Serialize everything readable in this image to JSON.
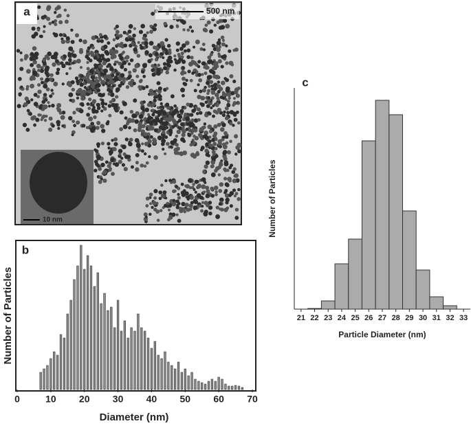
{
  "image_panel": {
    "label": "a",
    "scale_bar": "500 nm",
    "inset_scale_bar": "10 nm"
  },
  "chart_data": [
    {
      "type": "histogram",
      "label": "b",
      "x_label": "Diameter (nm)",
      "y_label": "Number of Particles",
      "bins": [
        6.5,
        7.5,
        8.5,
        9.5,
        10.5,
        11.5,
        12.5,
        13.5,
        14.5,
        15.5,
        16.5,
        17.5,
        18.5,
        19.5,
        20.5,
        21.5,
        22.5,
        23.5,
        24.5,
        25.5,
        26.5,
        27.5,
        28.5,
        29.5,
        30.5,
        31.5,
        32.5,
        33.5,
        34.5,
        35.5,
        36.5,
        37.5,
        38.5,
        39.5,
        40.5,
        41.5,
        42.5,
        43.5,
        44.5,
        45.5,
        46.5,
        47.5,
        48.5,
        49.5,
        50.5,
        51.5,
        52.5,
        53.5,
        54.5,
        55.5,
        56.5,
        57.5,
        58.5,
        59.5,
        60.5,
        61.5,
        62.5,
        63.5,
        64.5,
        65.5,
        66.5,
        67.5
      ],
      "values": [
        25,
        30,
        35,
        45,
        55,
        50,
        80,
        75,
        110,
        130,
        160,
        180,
        210,
        175,
        195,
        180,
        150,
        170,
        125,
        140,
        115,
        120,
        90,
        130,
        85,
        100,
        75,
        90,
        85,
        110,
        90,
        85,
        75,
        60,
        70,
        50,
        45,
        55,
        40,
        35,
        30,
        40,
        25,
        30,
        20,
        25,
        15,
        12,
        10,
        8,
        12,
        15,
        12,
        18,
        15,
        8,
        5,
        5,
        6,
        5,
        3
      ],
      "color": "#8a8a8a",
      "xlim": [
        0,
        70
      ],
      "xticks": [
        0,
        10,
        20,
        30,
        40,
        50,
        60,
        70
      ],
      "ylim": [
        0,
        215
      ]
    },
    {
      "type": "histogram",
      "label": "c",
      "x_label": "Particle Diameter (nm)",
      "y_label": "Number of Particles",
      "bins": [
        21.5,
        22.5,
        23.5,
        24.5,
        25.5,
        26.5,
        27.5,
        28.5,
        29.5,
        30.5,
        31.5,
        32.5
      ],
      "values": [
        1,
        12,
        66,
        102,
        245,
        304,
        283,
        143,
        57,
        18,
        5
      ],
      "color": "#ababab",
      "xlim": [
        20.5,
        33.5
      ],
      "xticks": [
        21,
        22,
        23,
        24,
        25,
        26,
        27,
        28,
        29,
        30,
        31,
        32,
        33
      ],
      "ylim": [
        0,
        322
      ]
    }
  ]
}
